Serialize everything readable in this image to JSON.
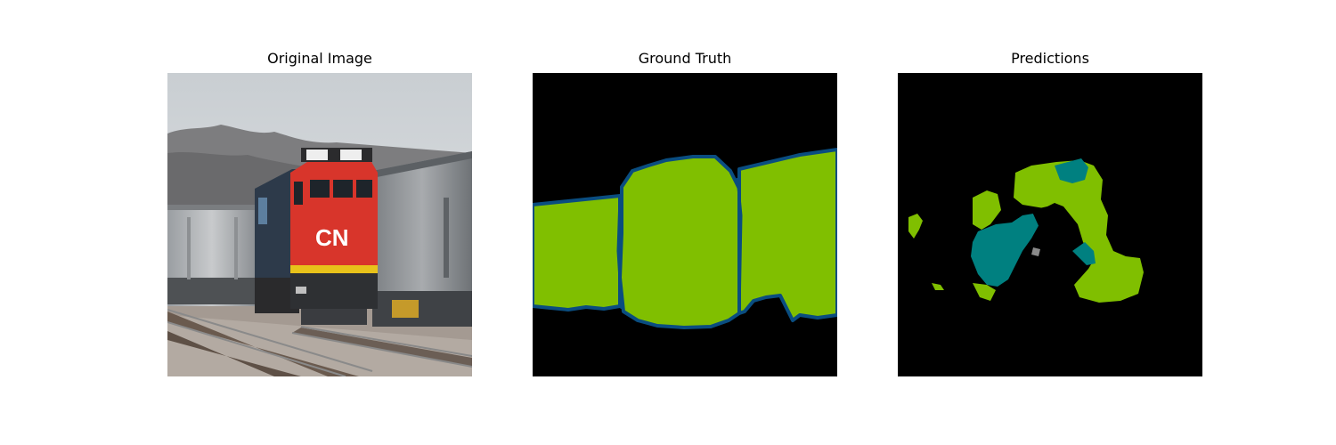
{
  "figure": {
    "panels": [
      {
        "title": "Original Image",
        "content": "photo of red CN locomotive with freight cars"
      },
      {
        "title": "Ground Truth",
        "content": "segmentation mask"
      },
      {
        "title": "Predictions",
        "content": "segmentation mask"
      }
    ],
    "colors": {
      "background": "#000000",
      "train_class": "#80bf00",
      "boundary": "#0a4d80",
      "prediction_alt_class": "#008080",
      "locomotive_red": "#d8352b"
    }
  }
}
